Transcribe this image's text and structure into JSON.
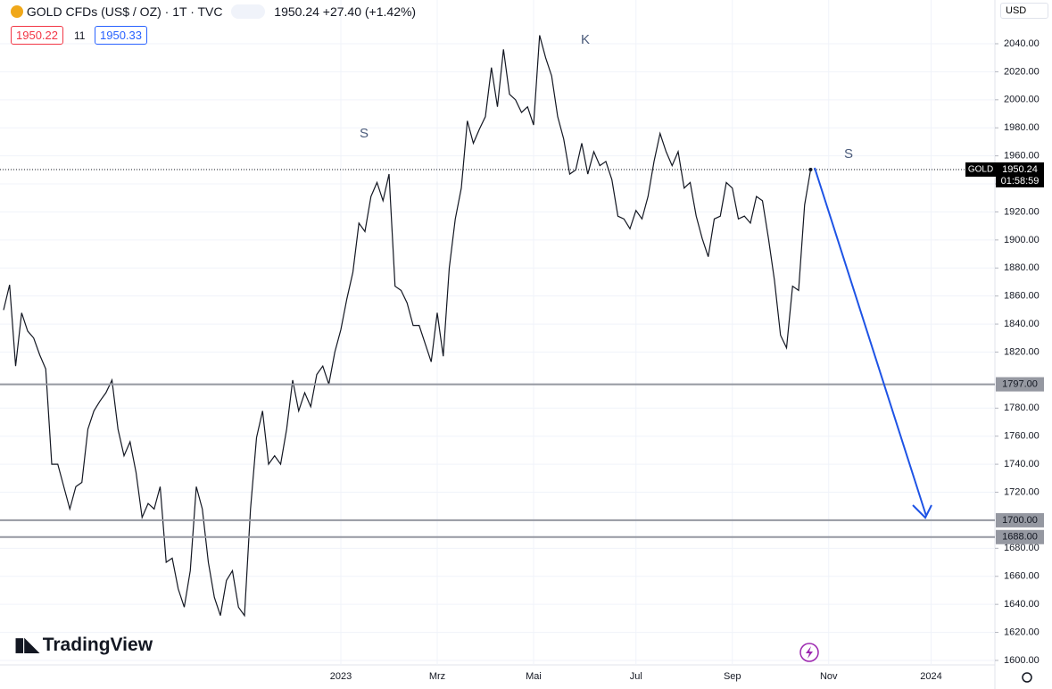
{
  "header": {
    "symbol": "GOLD CFDs (US$ / OZ) · 1T · TVC",
    "change": "+27.40 (+1.42%)",
    "bid": "1950.22",
    "spread": "11",
    "ask": "1950.33",
    "currency": "USD",
    "brand": "TradingView"
  },
  "chart_data": {
    "type": "line",
    "categories": [
      null,
      null,
      null,
      null,
      null,
      null,
      null,
      null,
      null,
      null,
      null,
      null,
      null,
      null,
      null,
      null,
      null,
      null,
      null,
      null,
      null,
      null,
      null,
      null,
      null,
      null,
      null,
      null,
      null,
      null,
      null,
      null,
      null,
      null,
      null,
      null,
      null,
      null,
      null,
      null,
      null,
      null,
      null,
      null,
      null,
      null,
      null,
      null,
      null,
      null,
      null,
      null,
      null,
      null,
      null,
      null,
      "2023",
      null,
      null,
      null,
      null,
      null,
      null,
      null,
      null,
      null,
      null,
      null,
      null,
      null,
      null,
      null,
      "Mrz",
      null,
      null,
      null,
      null,
      null,
      null,
      null,
      null,
      null,
      null,
      null,
      null,
      null,
      null,
      null,
      "Mai",
      null,
      null,
      null,
      null,
      null,
      null,
      null,
      null,
      null,
      null,
      null,
      null,
      null,
      null,
      null,
      null,
      "Jul",
      null,
      null,
      null,
      null,
      null,
      null,
      null,
      null,
      null,
      null,
      null,
      null,
      null,
      null,
      null,
      "Sep",
      null,
      null,
      null,
      null,
      null,
      null,
      null,
      null,
      null,
      null,
      null,
      null,
      null,
      null,
      null,
      "Nov",
      null,
      null,
      null,
      null,
      null,
      null,
      null,
      null,
      null,
      null,
      null,
      null,
      null,
      null,
      null,
      null,
      "2024",
      null,
      null,
      null,
      null,
      null,
      null,
      null,
      null,
      null,
      null
    ],
    "series": [
      {
        "name": "GOLD",
        "color": "#131722",
        "values": [
          1850,
          1868,
          1810,
          1848,
          1835,
          1830,
          1818,
          1808,
          1740,
          1740,
          1724,
          1708,
          1724,
          1727,
          1765,
          1778,
          1785,
          1791,
          1800,
          1765,
          1746,
          1756,
          1734,
          1702,
          1712,
          1708,
          1724,
          1670,
          1673,
          1651,
          1638,
          1664,
          1724,
          1708,
          1670,
          1645,
          1632,
          1657,
          1664,
          1638,
          1632,
          1708,
          1759,
          1778,
          1740,
          1746,
          1740,
          1765,
          1800,
          1778,
          1791,
          1781,
          1804,
          1810,
          1797,
          1820,
          1836,
          1858,
          1877,
          1912,
          1906,
          1931,
          1941,
          1928,
          1947,
          1867,
          1864,
          1855,
          1839,
          1839,
          1826,
          1813,
          1848,
          1817,
          1880,
          1915,
          1937,
          1985,
          1969,
          1979,
          1988,
          2023,
          1995,
          2036,
          2004,
          2000,
          1991,
          1995,
          1982,
          2046,
          2030,
          2017,
          1988,
          1972,
          1947,
          1950,
          1969,
          1947,
          1963,
          1953,
          1956,
          1943,
          1917,
          1915,
          1908,
          1921,
          1915,
          1931,
          1956,
          1976,
          1963,
          1953,
          1963,
          1937,
          1941,
          1917,
          1901,
          1888,
          1915,
          1917,
          1941,
          1937,
          1915,
          1917,
          1912,
          1931,
          1928,
          1901,
          1871,
          1832,
          1823,
          1867,
          1864,
          1925,
          1950.24,
          null,
          null,
          null,
          null,
          null,
          null,
          null,
          null,
          null,
          null,
          null,
          null,
          null,
          null,
          null,
          null,
          null,
          null,
          null,
          null,
          null,
          null,
          null,
          null,
          null,
          null,
          null,
          null,
          null,
          null
        ]
      }
    ],
    "ylim": [
      1596.8,
      2071.2
    ],
    "yticks": [
      {
        "value": 1600,
        "label": "1600.00"
      },
      {
        "value": 1620,
        "label": "1620.00"
      },
      {
        "value": 1640,
        "label": "1640.00"
      },
      {
        "value": 1660,
        "label": "1660.00"
      },
      {
        "value": 1680,
        "label": "1680.00"
      },
      {
        "value": 1720,
        "label": "1720.00"
      },
      {
        "value": 1740,
        "label": "1740.00"
      },
      {
        "value": 1760,
        "label": "1760.00"
      },
      {
        "value": 1780,
        "label": "1780.00"
      },
      {
        "value": 1820,
        "label": "1820.00"
      },
      {
        "value": 1840,
        "label": "1840.00"
      },
      {
        "value": 1860,
        "label": "1860.00"
      },
      {
        "value": 1880,
        "label": "1880.00"
      },
      {
        "value": 1900,
        "label": "1900.00"
      },
      {
        "value": 1920,
        "label": "1920.00"
      },
      {
        "value": 1940,
        "label": "1940.00"
      },
      {
        "value": 1960,
        "label": "1960.00"
      },
      {
        "value": 1980,
        "label": "1980.00"
      },
      {
        "value": 2000,
        "label": "2000.00"
      },
      {
        "value": 2020,
        "label": "2020.00"
      },
      {
        "value": 2040,
        "label": "2040.00"
      }
    ],
    "grid": true,
    "last_price": {
      "value": 1950.24,
      "label": "1950.24"
    },
    "countdown": "01:58:59",
    "levels": [
      {
        "value": 1797,
        "label": "1797.00"
      },
      {
        "value": 1700,
        "label": "1700.00"
      },
      {
        "value": 1688,
        "label": "1688.00"
      }
    ],
    "annotations": [
      "S",
      "K",
      "S"
    ]
  }
}
